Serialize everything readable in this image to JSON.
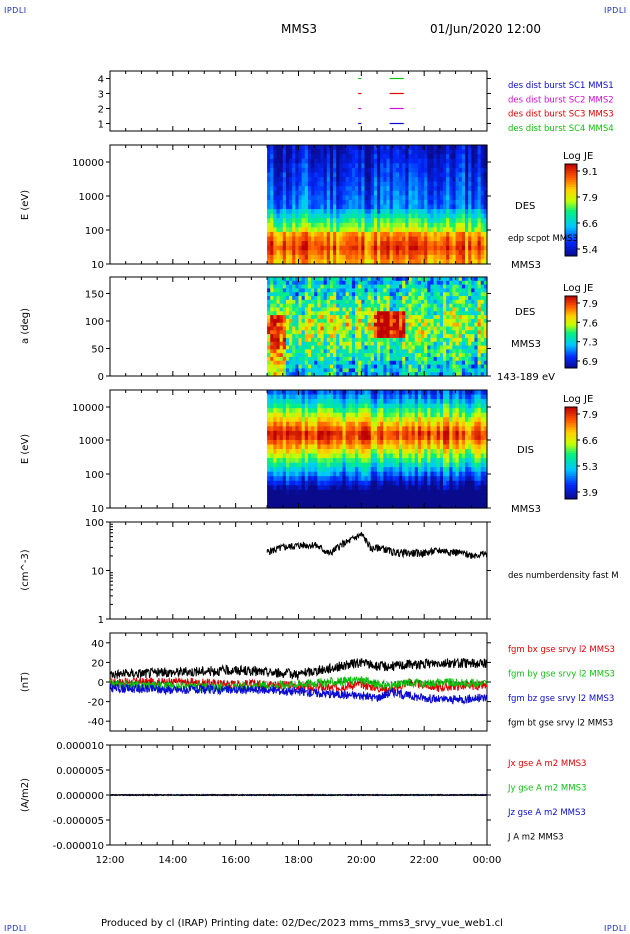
{
  "corners": {
    "label": "IPDLI"
  },
  "header": {
    "spacecraft": "MMS3",
    "date": "01/Jun/2020 12:00"
  },
  "footer": {
    "text": "Produced by cl (IRAP)   Printing date: 02/Dec/2023   mms_mms3_srvy_vue_web1.cl"
  },
  "colors": {
    "mms1": "#0a0ad0",
    "mms2": "#d010d0",
    "mms3": "#e00000",
    "mms4": "#10c010",
    "black": "#000000"
  },
  "chart_data": [
    {
      "panel": "burst",
      "type": "scatter",
      "yticks": [
        1,
        2,
        3,
        4
      ],
      "ylim": [
        0.5,
        4.5
      ],
      "x_ticks": [
        "12:00",
        "14:00",
        "16:00",
        "18:00",
        "20:00",
        "22:00",
        "00:00"
      ],
      "labels": [
        {
          "text": "des dist burst SC1 MMS1",
          "color": "#0a0ad0"
        },
        {
          "text": "des dist burst SC2 MMS2",
          "color": "#d010d0"
        },
        {
          "text": "des dist burst SC3 MMS3",
          "color": "#e00000"
        },
        {
          "text": "des dist burst SC4 MMS4",
          "color": "#10c010"
        }
      ],
      "intervals_hours": [
        [
          19.9,
          20.0
        ],
        [
          20.9,
          21.35
        ]
      ]
    },
    {
      "panel": "des_energy",
      "type": "heatmap",
      "ylabel": "E (eV)",
      "ylog": true,
      "ylim": [
        10,
        30000
      ],
      "yticks": [
        "10000",
        "1000",
        "100",
        "10"
      ],
      "data_start_hours": 17.0,
      "colorbar": {
        "title": "Log JE",
        "ticks": [
          "9.1",
          "7.9",
          "6.6",
          "5.4"
        ]
      },
      "labels": [
        "DES",
        "edp scpot MMS3",
        "MMS3"
      ]
    },
    {
      "panel": "des_pitch",
      "type": "heatmap",
      "ylabel": "a (deg)",
      "ylim": [
        0,
        180
      ],
      "yticks": [
        "150",
        "100",
        "50",
        "0"
      ],
      "data_start_hours": 17.0,
      "colorbar": {
        "title": "Log JE",
        "ticks": [
          "7.9",
          "7.6",
          "7.3",
          "6.9"
        ]
      },
      "labels": [
        "DES",
        "MMS3",
        "143-189 eV"
      ]
    },
    {
      "panel": "dis_energy",
      "type": "heatmap",
      "ylabel": "E (eV)",
      "ylog": true,
      "ylim": [
        10,
        30000
      ],
      "yticks": [
        "10000",
        "1000",
        "100",
        "10"
      ],
      "data_start_hours": 17.0,
      "colorbar": {
        "title": "Log JE",
        "ticks": [
          "7.9",
          "6.6",
          "5.3",
          "3.9"
        ]
      },
      "labels": [
        "DIS",
        "MMS3"
      ]
    },
    {
      "panel": "density",
      "type": "line",
      "ylabel": "(cm^-3)",
      "ylog": true,
      "ylim": [
        1,
        100
      ],
      "yticks": [
        "100",
        "10",
        "1"
      ],
      "series": [
        {
          "name": "des numberdensity fast M",
          "color": "#000000",
          "x": [
            17.0,
            17.5,
            18.0,
            18.5,
            19.0,
            19.3,
            19.6,
            20.0,
            20.3,
            20.6,
            21.0,
            21.5,
            22.0,
            22.5,
            23.0,
            23.5,
            24.0
          ],
          "y": [
            24,
            30,
            33,
            34,
            22,
            32,
            40,
            55,
            28,
            30,
            24,
            23,
            23,
            26,
            24,
            21,
            22
          ]
        }
      ]
    },
    {
      "panel": "b_field",
      "type": "line",
      "ylabel": "(nT)",
      "ylim": [
        -50,
        50
      ],
      "yticks": [
        "40",
        "20",
        "0",
        "-20",
        "-40"
      ],
      "series": [
        {
          "name": "fgm bx gse srvy l2 MMS3",
          "color": "#e00000",
          "x": [
            12,
            14,
            16,
            17,
            18,
            19,
            20,
            20.5,
            21,
            21.5,
            22,
            22.5,
            23,
            24
          ],
          "y": [
            0,
            0,
            -2,
            -2,
            -4,
            -6,
            -2,
            -6,
            -8,
            0,
            -3,
            -6,
            -4,
            -4
          ]
        },
        {
          "name": "fgm by gse srvy l2 MMS3",
          "color": "#10c010",
          "x": [
            12,
            14,
            16,
            17,
            18,
            19,
            20,
            20.5,
            21,
            21.5,
            22,
            22.5,
            23,
            24
          ],
          "y": [
            -2,
            -4,
            -6,
            -4,
            -2,
            0,
            2,
            -2,
            -4,
            0,
            -2,
            0,
            -1,
            -1
          ]
        },
        {
          "name": "fgm bz gse srvy l2 MMS3",
          "color": "#0a0ad0",
          "x": [
            12,
            14,
            16,
            17,
            18,
            19,
            20,
            20.5,
            21,
            21.5,
            22,
            22.5,
            23,
            24
          ],
          "y": [
            -6,
            -8,
            -8,
            -8,
            -10,
            -12,
            -14,
            -16,
            -10,
            -14,
            -16,
            -18,
            -18,
            -16
          ]
        },
        {
          "name": "fgm bt gse srvy l2 MMS3",
          "color": "#000000",
          "x": [
            12,
            14,
            16,
            17,
            18,
            19,
            20,
            20.5,
            21,
            21.5,
            22,
            22.5,
            23,
            24
          ],
          "y": [
            8,
            10,
            12,
            10,
            8,
            14,
            20,
            16,
            16,
            18,
            18,
            20,
            19,
            19
          ]
        }
      ]
    },
    {
      "panel": "current",
      "type": "line",
      "ylabel": "(A/m2)",
      "ylim": [
        -0.0001,
        0.0001
      ],
      "yticks": [
        "0.000010",
        "0.000005",
        "0.000000",
        "-0.000005",
        "-0.000010"
      ],
      "series": [
        {
          "name": "Jx gse A m2 MMS3",
          "color": "#e00000",
          "x": [
            12,
            24
          ],
          "y": [
            0,
            0
          ]
        },
        {
          "name": "Jy gse A m2 MMS3",
          "color": "#10c010",
          "x": [
            12,
            24
          ],
          "y": [
            0,
            0
          ]
        },
        {
          "name": "Jz gse A m2 MMS3",
          "color": "#0a0ad0",
          "x": [
            12,
            24
          ],
          "y": [
            0,
            0
          ]
        },
        {
          "name": "J A m2 MMS3",
          "color": "#000000",
          "x": [
            12,
            24
          ],
          "y": [
            0,
            0
          ]
        }
      ]
    }
  ]
}
